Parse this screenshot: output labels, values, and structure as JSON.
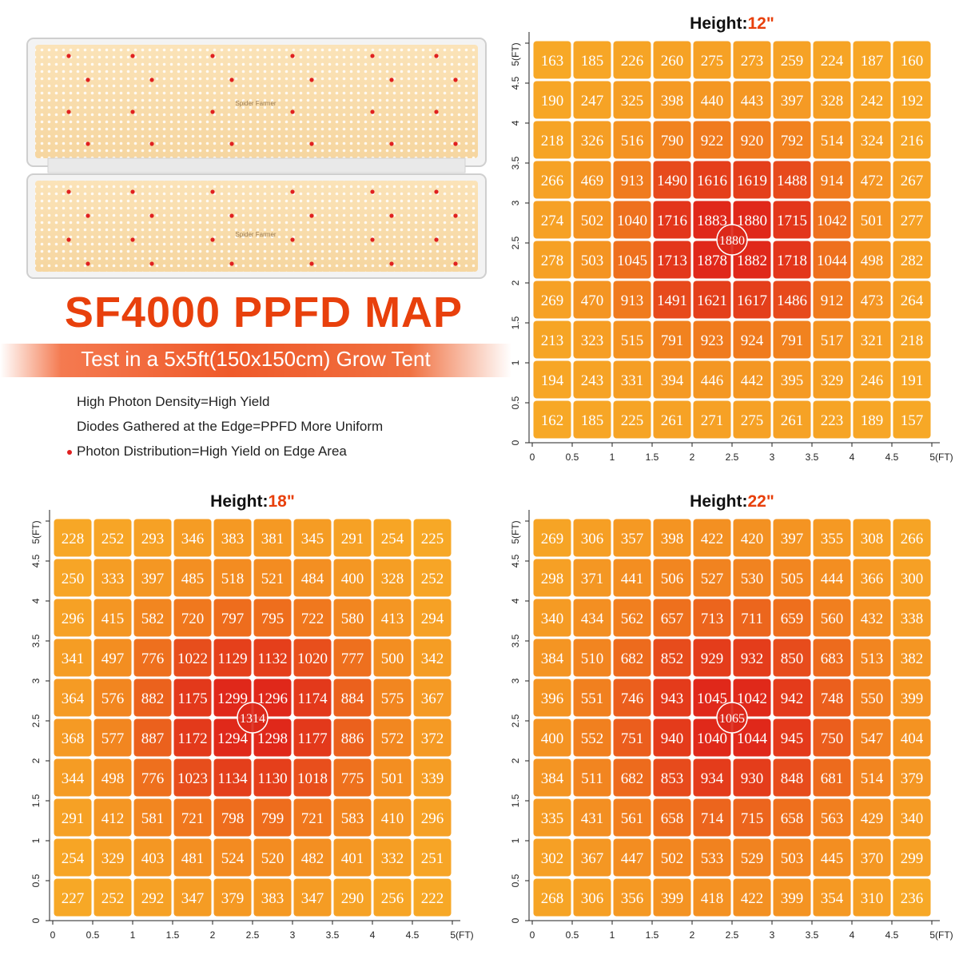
{
  "title": "SF4000 PPFD MAP",
  "subtitle": "Test in a 5x5ft(150x150cm) Grow Tent",
  "features": [
    "High Photon Density=High Yield",
    "Diodes Gathered at the Edge=PPFD More Uniform",
    "Photon Distribution=High Yield on Edge Area"
  ],
  "colors": {
    "title": "#e8400c",
    "banner": "#ef5a2a",
    "height_value": "#e8400c",
    "cell_low": "#f7a826",
    "cell_mid": "#f07a1e",
    "cell_high": "#e0281a",
    "feature_dot": "#e02020"
  },
  "product": {
    "panel_label": "Spider Farmer"
  },
  "chart_data": [
    {
      "type": "heatmap",
      "title_prefix": "Height:",
      "title_value": "12\"",
      "x_ticks": [
        "0",
        "0.5",
        "1",
        "1.5",
        "2",
        "2.5",
        "3",
        "3.5",
        "4",
        "4.5",
        "5(FT)"
      ],
      "y_ticks": [
        "0",
        "0.5",
        "1",
        "1.5",
        "2",
        "2.5",
        "3",
        "3.5",
        "4",
        "4.5",
        "5(FT)"
      ],
      "center_value": "1880",
      "rows": [
        [
          163,
          185,
          226,
          260,
          275,
          273,
          259,
          224,
          187,
          160
        ],
        [
          190,
          247,
          325,
          398,
          440,
          443,
          397,
          328,
          242,
          192
        ],
        [
          218,
          326,
          516,
          790,
          922,
          920,
          792,
          514,
          324,
          216
        ],
        [
          266,
          469,
          913,
          1490,
          1616,
          1619,
          1488,
          914,
          472,
          267
        ],
        [
          274,
          502,
          1040,
          1716,
          1883,
          1880,
          1715,
          1042,
          501,
          277
        ],
        [
          278,
          503,
          1045,
          1713,
          1878,
          1882,
          1718,
          1044,
          498,
          282
        ],
        [
          269,
          470,
          913,
          1491,
          1621,
          1617,
          1486,
          912,
          473,
          264
        ],
        [
          213,
          323,
          515,
          791,
          923,
          924,
          791,
          517,
          321,
          218
        ],
        [
          194,
          243,
          331,
          394,
          446,
          442,
          395,
          329,
          246,
          191
        ],
        [
          162,
          185,
          225,
          261,
          271,
          275,
          261,
          223,
          189,
          157
        ]
      ]
    },
    {
      "type": "heatmap",
      "title_prefix": "Height:",
      "title_value": "18\"",
      "x_ticks": [
        "0",
        "0.5",
        "1",
        "1.5",
        "2",
        "2.5",
        "3",
        "3.5",
        "4",
        "4.5",
        "5(FT)"
      ],
      "y_ticks": [
        "0",
        "0.5",
        "1",
        "1.5",
        "2",
        "2.5",
        "3",
        "3.5",
        "4",
        "4.5",
        "5(FT)"
      ],
      "center_value": "1314",
      "rows": [
        [
          228,
          252,
          293,
          346,
          383,
          381,
          345,
          291,
          254,
          225
        ],
        [
          250,
          333,
          397,
          485,
          518,
          521,
          484,
          400,
          328,
          252
        ],
        [
          296,
          415,
          582,
          720,
          797,
          795,
          722,
          580,
          413,
          294
        ],
        [
          341,
          497,
          776,
          1022,
          1129,
          1132,
          1020,
          777,
          500,
          342
        ],
        [
          364,
          576,
          882,
          1175,
          1299,
          1296,
          1174,
          884,
          575,
          367
        ],
        [
          368,
          577,
          887,
          1172,
          1294,
          1298,
          1177,
          886,
          572,
          372
        ],
        [
          344,
          498,
          776,
          1023,
          1134,
          1130,
          1018,
          775,
          501,
          339
        ],
        [
          291,
          412,
          581,
          721,
          798,
          799,
          721,
          583,
          410,
          296
        ],
        [
          254,
          329,
          403,
          481,
          524,
          520,
          482,
          401,
          332,
          251
        ],
        [
          227,
          252,
          292,
          347,
          379,
          383,
          347,
          290,
          256,
          222
        ]
      ]
    },
    {
      "type": "heatmap",
      "title_prefix": "Height:",
      "title_value": "22\"",
      "x_ticks": [
        "0",
        "0.5",
        "1",
        "1.5",
        "2",
        "2.5",
        "3",
        "3.5",
        "4",
        "4.5",
        "5(FT)"
      ],
      "y_ticks": [
        "0",
        "0.5",
        "1",
        "1.5",
        "2",
        "2.5",
        "3",
        "3.5",
        "4",
        "4.5",
        "5(FT)"
      ],
      "center_value": "1065",
      "rows": [
        [
          269,
          306,
          357,
          398,
          422,
          420,
          397,
          355,
          308,
          266
        ],
        [
          298,
          371,
          441,
          506,
          527,
          530,
          505,
          444,
          366,
          300
        ],
        [
          340,
          434,
          562,
          657,
          713,
          711,
          659,
          560,
          432,
          338
        ],
        [
          384,
          510,
          682,
          852,
          929,
          932,
          850,
          683,
          513,
          382
        ],
        [
          396,
          551,
          746,
          943,
          1045,
          1042,
          942,
          748,
          550,
          399
        ],
        [
          400,
          552,
          751,
          940,
          1040,
          1044,
          945,
          750,
          547,
          404
        ],
        [
          384,
          511,
          682,
          853,
          934,
          930,
          848,
          681,
          514,
          379
        ],
        [
          335,
          431,
          561,
          658,
          714,
          715,
          658,
          563,
          429,
          340
        ],
        [
          302,
          367,
          447,
          502,
          533,
          529,
          503,
          445,
          370,
          299
        ],
        [
          268,
          306,
          356,
          399,
          418,
          422,
          399,
          354,
          310,
          236
        ]
      ]
    }
  ]
}
